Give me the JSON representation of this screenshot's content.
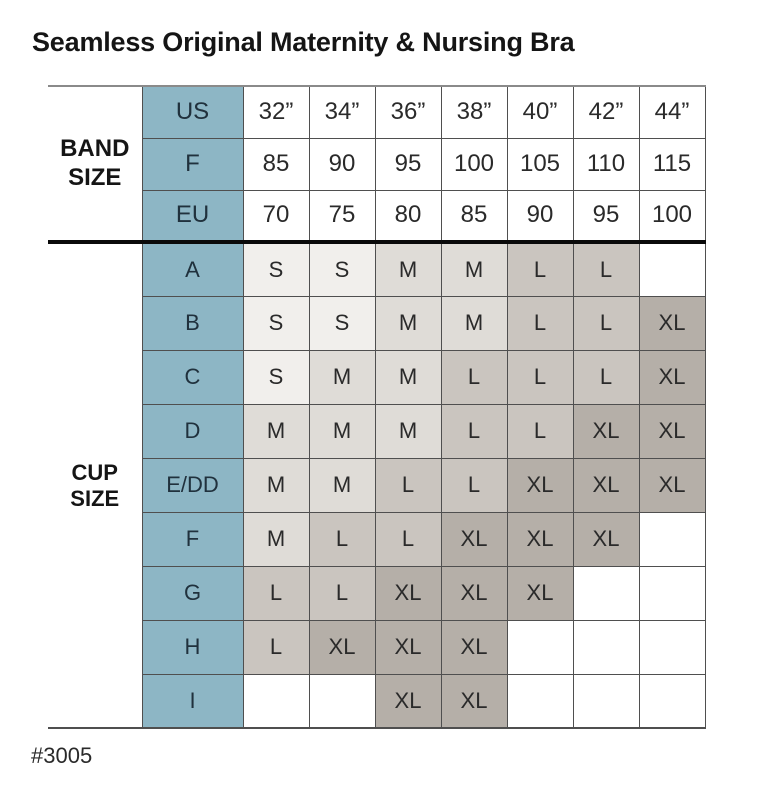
{
  "page": {
    "title": "Seamless Original Maternity & Nursing Bra",
    "footnote": "#3005"
  },
  "colors": {
    "header_blue": "#8db6c5",
    "size_s": "#f1efec",
    "size_m": "#dfdcd7",
    "size_l": "#cac5bf",
    "size_xl": "#b5afa8",
    "empty_cell": "#ffffff",
    "grid_line": "#4f4f4f",
    "section_divider": "#0a0a0a",
    "title_text": "#151515",
    "header_text": "#20313d",
    "cell_text": "#2a2a2a"
  },
  "chart_data": {
    "type": "table",
    "title": "Seamless Original Maternity & Nursing Bra",
    "band_section_label": "BAND SIZE",
    "cup_section_label": "CUP SIZE",
    "legend": [
      "S",
      "M",
      "L",
      "XL"
    ],
    "band_rows": [
      {
        "label": "US",
        "values": [
          "32”",
          "34”",
          "36”",
          "38”",
          "40”",
          "42”",
          "44”"
        ]
      },
      {
        "label": "F",
        "values": [
          "85",
          "90",
          "95",
          "100",
          "105",
          "110",
          "115"
        ]
      },
      {
        "label": "EU",
        "values": [
          "70",
          "75",
          "80",
          "85",
          "90",
          "95",
          "100"
        ]
      }
    ],
    "cup_rows": [
      {
        "label": "A",
        "values": [
          "S",
          "S",
          "M",
          "M",
          "L",
          "L",
          ""
        ]
      },
      {
        "label": "B",
        "values": [
          "S",
          "S",
          "M",
          "M",
          "L",
          "L",
          "XL"
        ]
      },
      {
        "label": "C",
        "values": [
          "S",
          "M",
          "M",
          "L",
          "L",
          "L",
          "XL"
        ]
      },
      {
        "label": "D",
        "values": [
          "M",
          "M",
          "M",
          "L",
          "L",
          "XL",
          "XL"
        ]
      },
      {
        "label": "E/DD",
        "values": [
          "M",
          "M",
          "L",
          "L",
          "XL",
          "XL",
          "XL"
        ]
      },
      {
        "label": "F",
        "values": [
          "M",
          "L",
          "L",
          "XL",
          "XL",
          "XL",
          ""
        ]
      },
      {
        "label": "G",
        "values": [
          "L",
          "L",
          "XL",
          "XL",
          "XL",
          "",
          ""
        ]
      },
      {
        "label": "H",
        "values": [
          "L",
          "XL",
          "XL",
          "XL",
          "",
          "",
          ""
        ]
      },
      {
        "label": "I",
        "values": [
          "",
          "",
          "XL",
          "XL",
          "",
          "",
          ""
        ]
      }
    ]
  }
}
